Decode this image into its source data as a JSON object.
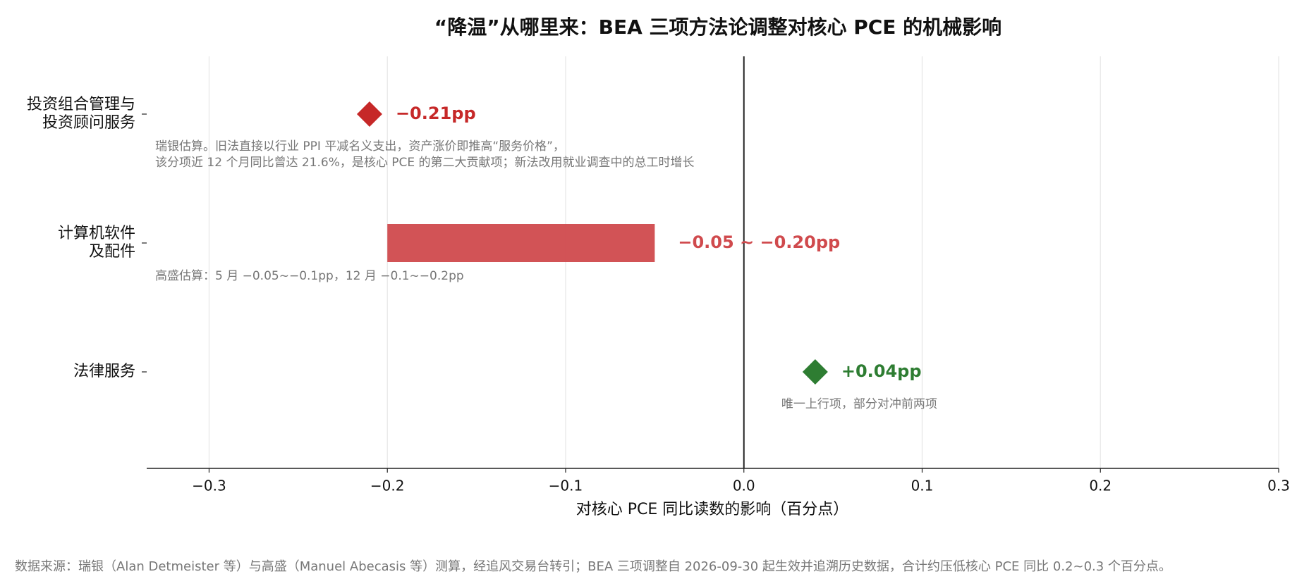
{
  "chart_data": {
    "type": "range-dot",
    "title": "“降温”从哪里来：BEA 三项方法论调整对核心 PCE 的机械影响",
    "x_label": "对核心 PCE 同比读数的影响（百分点）",
    "source": "数据来源：瑞银（Alan Detmeister 等）与高盛（Manuel Abecasis 等）测算，经追风交易台转引；BEA 三项调整自 2026-09-30 起生效并追溯历史数据，合计约压低核心 PCE 同比 0.2~0.3 个百分点。",
    "categories": [
      [
        "投资组合管理与",
        "投资顾问服务"
      ],
      [
        "计算机软件",
        "及配件"
      ],
      [
        "法律服务"
      ]
    ],
    "values": [
      -0.21,
      null,
      0.04
    ],
    "range_low": [
      null,
      -0.05,
      null
    ],
    "range_high": [
      null,
      -0.2,
      null
    ],
    "value_labels": [
      "−0.21pp",
      "−0.05 ~ −0.20pp",
      "+0.04pp"
    ],
    "colors": [
      "#c62828",
      "#d04a4d",
      "#2e7d32"
    ],
    "annotations": [
      [
        "瑞银估算。旧法直接以行业 PPI 平减名义支出，资产涨价即推高“服务价格”，",
        "该分项近 12 个月同比曾达 21.6%，是核心 PCE 的第二大贡献项；新法改用就业调查中的总工时增长"
      ],
      [
        "高盛估算：5 月 −0.05~−0.1pp，12 月 −0.1~−0.2pp"
      ],
      [
        "唯一上行项，部分对冲前两项"
      ]
    ],
    "xlim": [
      -0.335,
      0.3
    ],
    "xticks": [
      {
        "value": -0.3,
        "label": "−0.3"
      },
      {
        "value": -0.2,
        "label": "−0.2"
      },
      {
        "value": -0.1,
        "label": "−0.1"
      },
      {
        "value": 0,
        "label": "0.0"
      },
      0.1,
      0.2,
      0.3
    ],
    "grid": true
  }
}
